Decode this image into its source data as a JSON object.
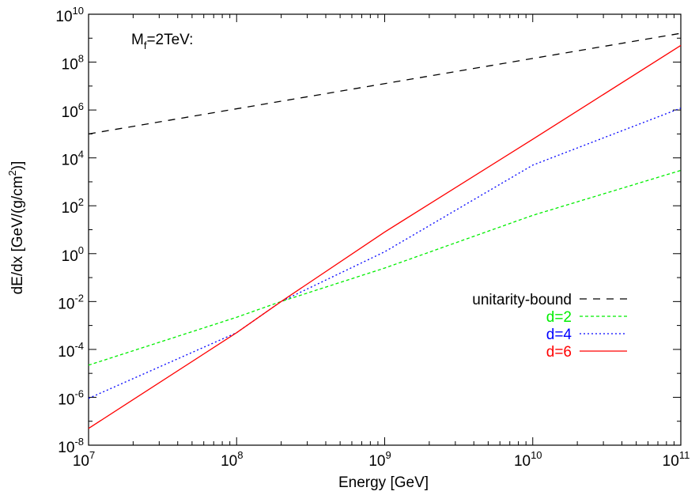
{
  "chart_data": {
    "type": "line",
    "title": "",
    "annotation": {
      "main": "M",
      "sub": "f",
      "rest": "=2TeV:"
    },
    "xlabel": "Energy [GeV]",
    "ylabel": {
      "main": "dE/dx [GeV/(g/cm",
      "sup": "2",
      "tail": ")]"
    },
    "x_scale": "log",
    "y_scale": "log",
    "xlim": [
      10000000.0,
      100000000000.0
    ],
    "ylim": [
      1e-08,
      10000000000.0
    ],
    "x_ticks": [
      {
        "base": "10",
        "exp": "7",
        "value": 10000000.0
      },
      {
        "base": "10",
        "exp": "8",
        "value": 100000000.0
      },
      {
        "base": "10",
        "exp": "9",
        "value": 1000000000.0
      },
      {
        "base": "10",
        "exp": "10",
        "value": 10000000000.0
      },
      {
        "base": "10",
        "exp": "11",
        "value": 100000000000.0
      }
    ],
    "y_ticks": [
      {
        "base": "10",
        "exp": "-8",
        "value": 1e-08
      },
      {
        "base": "10",
        "exp": "-6",
        "value": 1e-06
      },
      {
        "base": "10",
        "exp": "-4",
        "value": 0.0001
      },
      {
        "base": "10",
        "exp": "-2",
        "value": 0.01
      },
      {
        "base": "10",
        "exp": "0",
        "value": 1
      },
      {
        "base": "10",
        "exp": "2",
        "value": 100.0
      },
      {
        "base": "10",
        "exp": "4",
        "value": 10000.0
      },
      {
        "base": "10",
        "exp": "6",
        "value": 1000000.0
      },
      {
        "base": "10",
        "exp": "8",
        "value": 100000000.0
      },
      {
        "base": "10",
        "exp": "10",
        "value": 10000000000.0
      }
    ],
    "grid": false,
    "legend_position": "right",
    "series": [
      {
        "name": "unitarity-bound",
        "color": "#000000",
        "dash": "dashed",
        "x": [
          10000000.0,
          100000000000.0
        ],
        "y": [
          100000.0,
          1600000000.0
        ]
      },
      {
        "name": "d=2",
        "color": "#00ee00",
        "dash": "dashed-fine",
        "x": [
          10000000.0,
          100000000.0,
          200000000.0,
          1000000000.0,
          10000000000.0,
          100000000000.0
        ],
        "y": [
          2.2e-05,
          0.0022,
          0.01,
          0.25,
          40,
          3000
        ]
      },
      {
        "name": "d=4",
        "color": "#0000ff",
        "dash": "dotted",
        "x": [
          10000000.0,
          100000000.0,
          200000000.0,
          1000000000.0,
          10000000000.0,
          100000000000.0
        ],
        "y": [
          9e-07,
          0.0005,
          0.01,
          1.2,
          5000,
          1200000.0
        ]
      },
      {
        "name": "d=6",
        "color": "#ff0000",
        "dash": "solid",
        "x": [
          10000000.0,
          100000000.0,
          200000000.0,
          1000000000.0,
          10000000000.0,
          100000000000.0
        ],
        "y": [
          5e-08,
          0.0005,
          0.01,
          8,
          60000,
          500000000.0
        ]
      }
    ]
  }
}
